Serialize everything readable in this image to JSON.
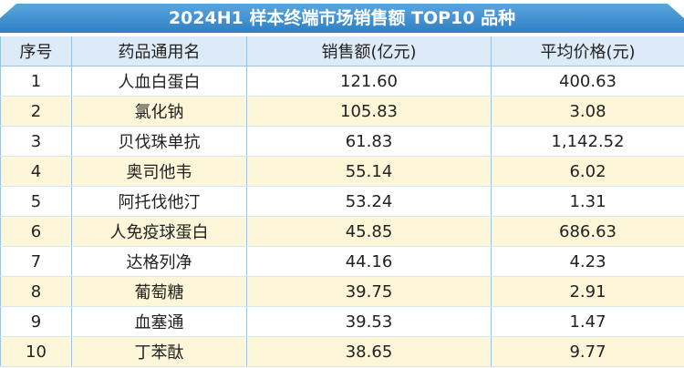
{
  "header": {
    "title": "2024H1 样本终端市场销售额 TOP10 品种"
  },
  "table": {
    "columns": [
      "序号",
      "药品通用名",
      "销售额(亿元)",
      "平均价格(元)"
    ],
    "rows": [
      [
        "1",
        "人血白蛋白",
        "121.60",
        "400.63"
      ],
      [
        "2",
        "氯化钠",
        "105.83",
        "3.08"
      ],
      [
        "3",
        "贝伐珠单抗",
        "61.83",
        "1,142.52"
      ],
      [
        "4",
        "奥司他韦",
        "55.14",
        "6.02"
      ],
      [
        "5",
        "阿托伐他汀",
        "53.24",
        "1.31"
      ],
      [
        "6",
        "人免疫球蛋白",
        "45.85",
        "686.63"
      ],
      [
        "7",
        "达格列净",
        "44.16",
        "4.23"
      ],
      [
        "8",
        "葡萄糖",
        "39.75",
        "2.91"
      ],
      [
        "9",
        "血塞通",
        "39.53",
        "1.47"
      ],
      [
        "10",
        "丁苯酞",
        "38.65",
        "9.77"
      ]
    ]
  }
}
